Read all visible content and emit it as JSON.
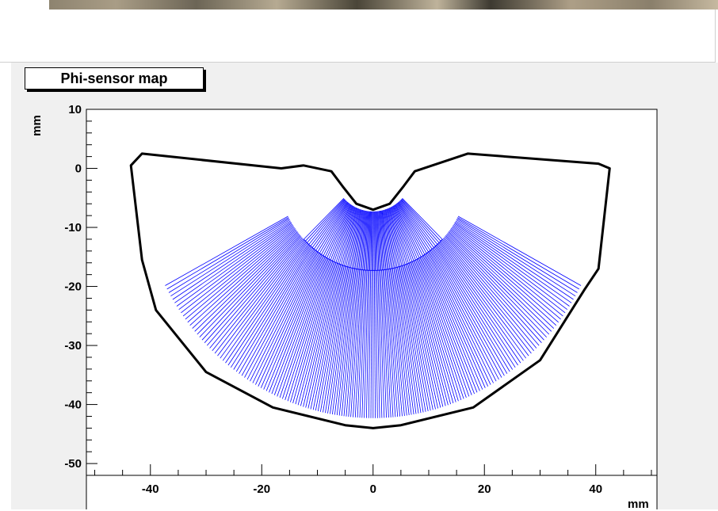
{
  "chart_data": {
    "type": "line",
    "title": "Phi-sensor map",
    "xlabel": "mm",
    "ylabel": "mm",
    "xlim": [
      -51.5,
      51
    ],
    "ylim": [
      -52,
      10
    ],
    "x_ticks": [
      -40,
      -20,
      0,
      20,
      40
    ],
    "y_ticks": [
      10,
      0,
      -10,
      -20,
      -30,
      -40,
      -50
    ],
    "x_tick_labels": [
      "-40",
      "-20",
      "0",
      "20",
      "40"
    ],
    "y_tick_labels": [
      "10",
      "0",
      "-10",
      "-20",
      "-30",
      "-40",
      "-50"
    ],
    "grid": false,
    "legend": "none",
    "colors": {
      "strips": "#0000ff",
      "outline": "#000000",
      "fill": "#ffffff",
      "pad": "#f0f0f0"
    },
    "series": [
      {
        "role": "sensor-outline",
        "x": [
          -41.5,
          -43.5,
          -41.5,
          -39,
          -30,
          -18,
          -5,
          0,
          5,
          18,
          30,
          38,
          40.5,
          42.5,
          40.5,
          17,
          7.5,
          5.5,
          3,
          0,
          -3,
          -5.5,
          -7.5,
          -12.5,
          -16.5,
          -41.5
        ],
        "y": [
          2.5,
          0.5,
          -15.5,
          -24,
          -34.5,
          -40.5,
          -43.5,
          -44,
          -43.5,
          -40.5,
          -32.5,
          -20.5,
          -17,
          0,
          0.8,
          2.5,
          -0.5,
          -3,
          -6,
          -7,
          -6,
          -3,
          -0.5,
          0.5,
          0,
          2.5
        ]
      }
    ],
    "strip_regions": {
      "inner": {
        "r_min": 7.3,
        "r_max": 17.3,
        "phi_start_deg": -136,
        "phi_end_deg": -44
      },
      "outer": {
        "r_min": 17.3,
        "r_max": 42.3,
        "phi_start_deg": -152,
        "phi_end_deg": -28
      }
    }
  }
}
